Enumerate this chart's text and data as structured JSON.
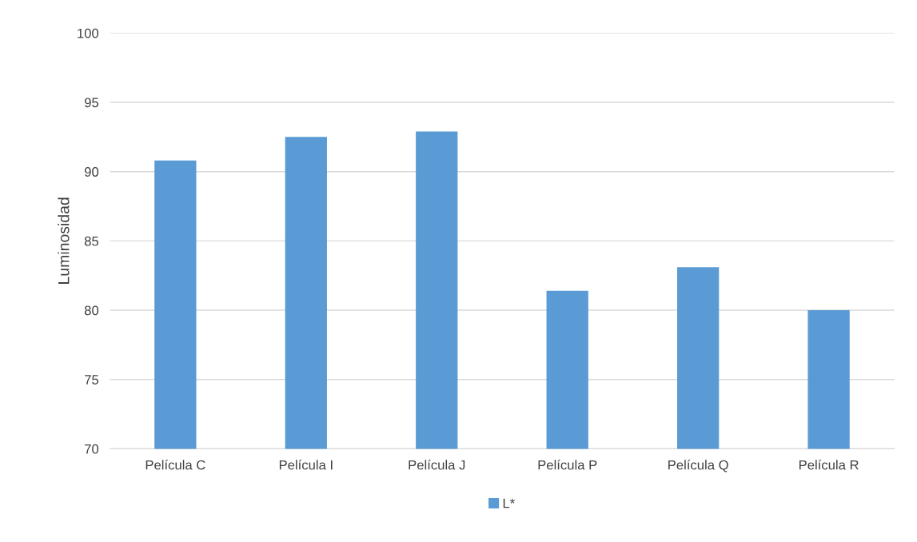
{
  "chart_data": {
    "type": "bar",
    "ylabel": "Luminosidad",
    "categories": [
      "Película C",
      "Película I",
      "Película J",
      "Película P",
      "Película Q",
      "Película R"
    ],
    "series": [
      {
        "name": "L*",
        "color": "#5b9bd5",
        "values": [
          90.8,
          92.5,
          92.9,
          81.4,
          83.1,
          80.0
        ]
      }
    ],
    "ylim": [
      70,
      100
    ],
    "yticks": [
      70,
      75,
      80,
      85,
      90,
      95,
      100
    ],
    "grid": "y",
    "legend": "bottom"
  }
}
